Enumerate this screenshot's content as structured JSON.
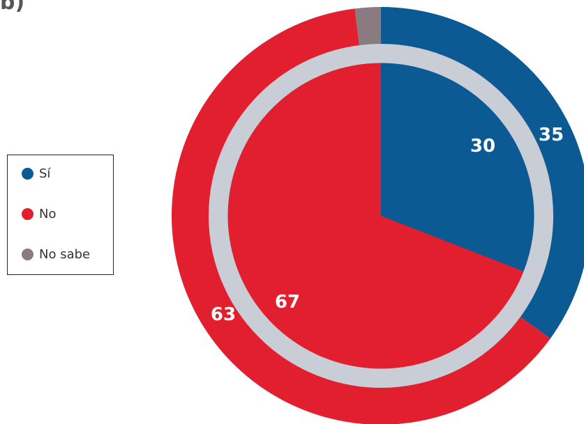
{
  "corner_mark": "b)",
  "legend": {
    "items": [
      {
        "label": "Sí",
        "color": "#0b5a94"
      },
      {
        "label": "No",
        "color": "#e21f2f"
      },
      {
        "label": "No sabe",
        "color": "#8a7b80"
      }
    ]
  },
  "chart_data": [
    {
      "type": "pie",
      "ring": "outer",
      "categories": [
        "Sí",
        "No",
        "No sabe"
      ],
      "values": [
        35,
        63,
        2
      ],
      "data_labels": [
        "35",
        "63",
        ""
      ],
      "colors": [
        "#0b5a94",
        "#e21f2f",
        "#8a7b80"
      ]
    },
    {
      "type": "pie",
      "ring": "inner",
      "categories": [
        "Sí",
        "No"
      ],
      "values": [
        30,
        67
      ],
      "data_labels": [
        "30",
        "67"
      ],
      "colors": [
        "#0b5a94",
        "#e21f2f"
      ]
    }
  ]
}
